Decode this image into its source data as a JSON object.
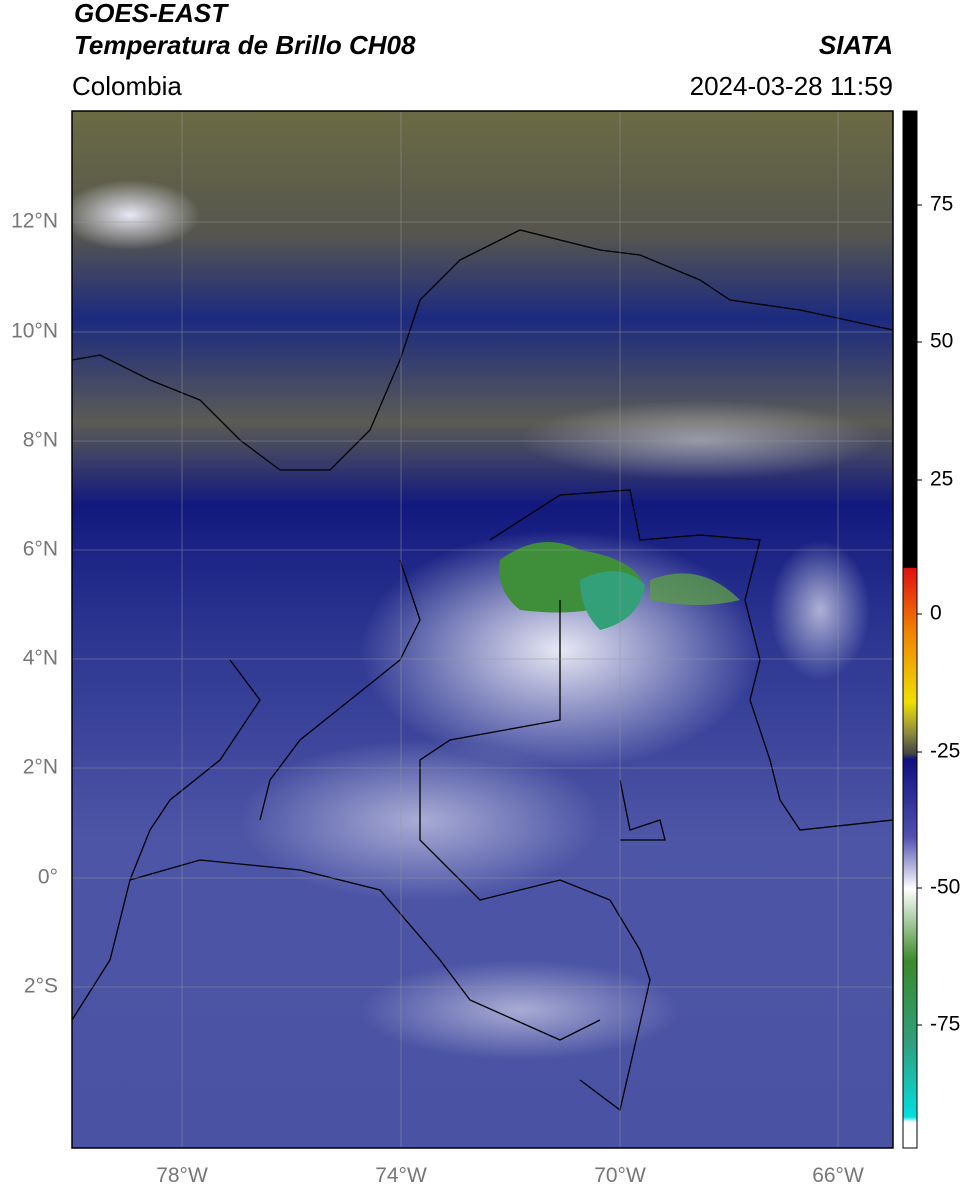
{
  "header": {
    "title": "GOES-EAST",
    "subtitle": "Temperatura de Brillo CH08",
    "region": "Colombia",
    "source": "SIATA",
    "timestamp": "2024-03-28 11:59"
  },
  "map": {
    "lat_ticks": [
      "12°N",
      "10°N",
      "8°N",
      "6°N",
      "4°N",
      "2°N",
      "0°",
      "2°S"
    ],
    "lon_ticks": [
      "78°W",
      "74°W",
      "70°W",
      "66°W"
    ]
  },
  "colorbar": {
    "ticks": [
      "75",
      "50",
      "25",
      "0",
      "-25",
      "-50",
      "-75"
    ]
  }
}
